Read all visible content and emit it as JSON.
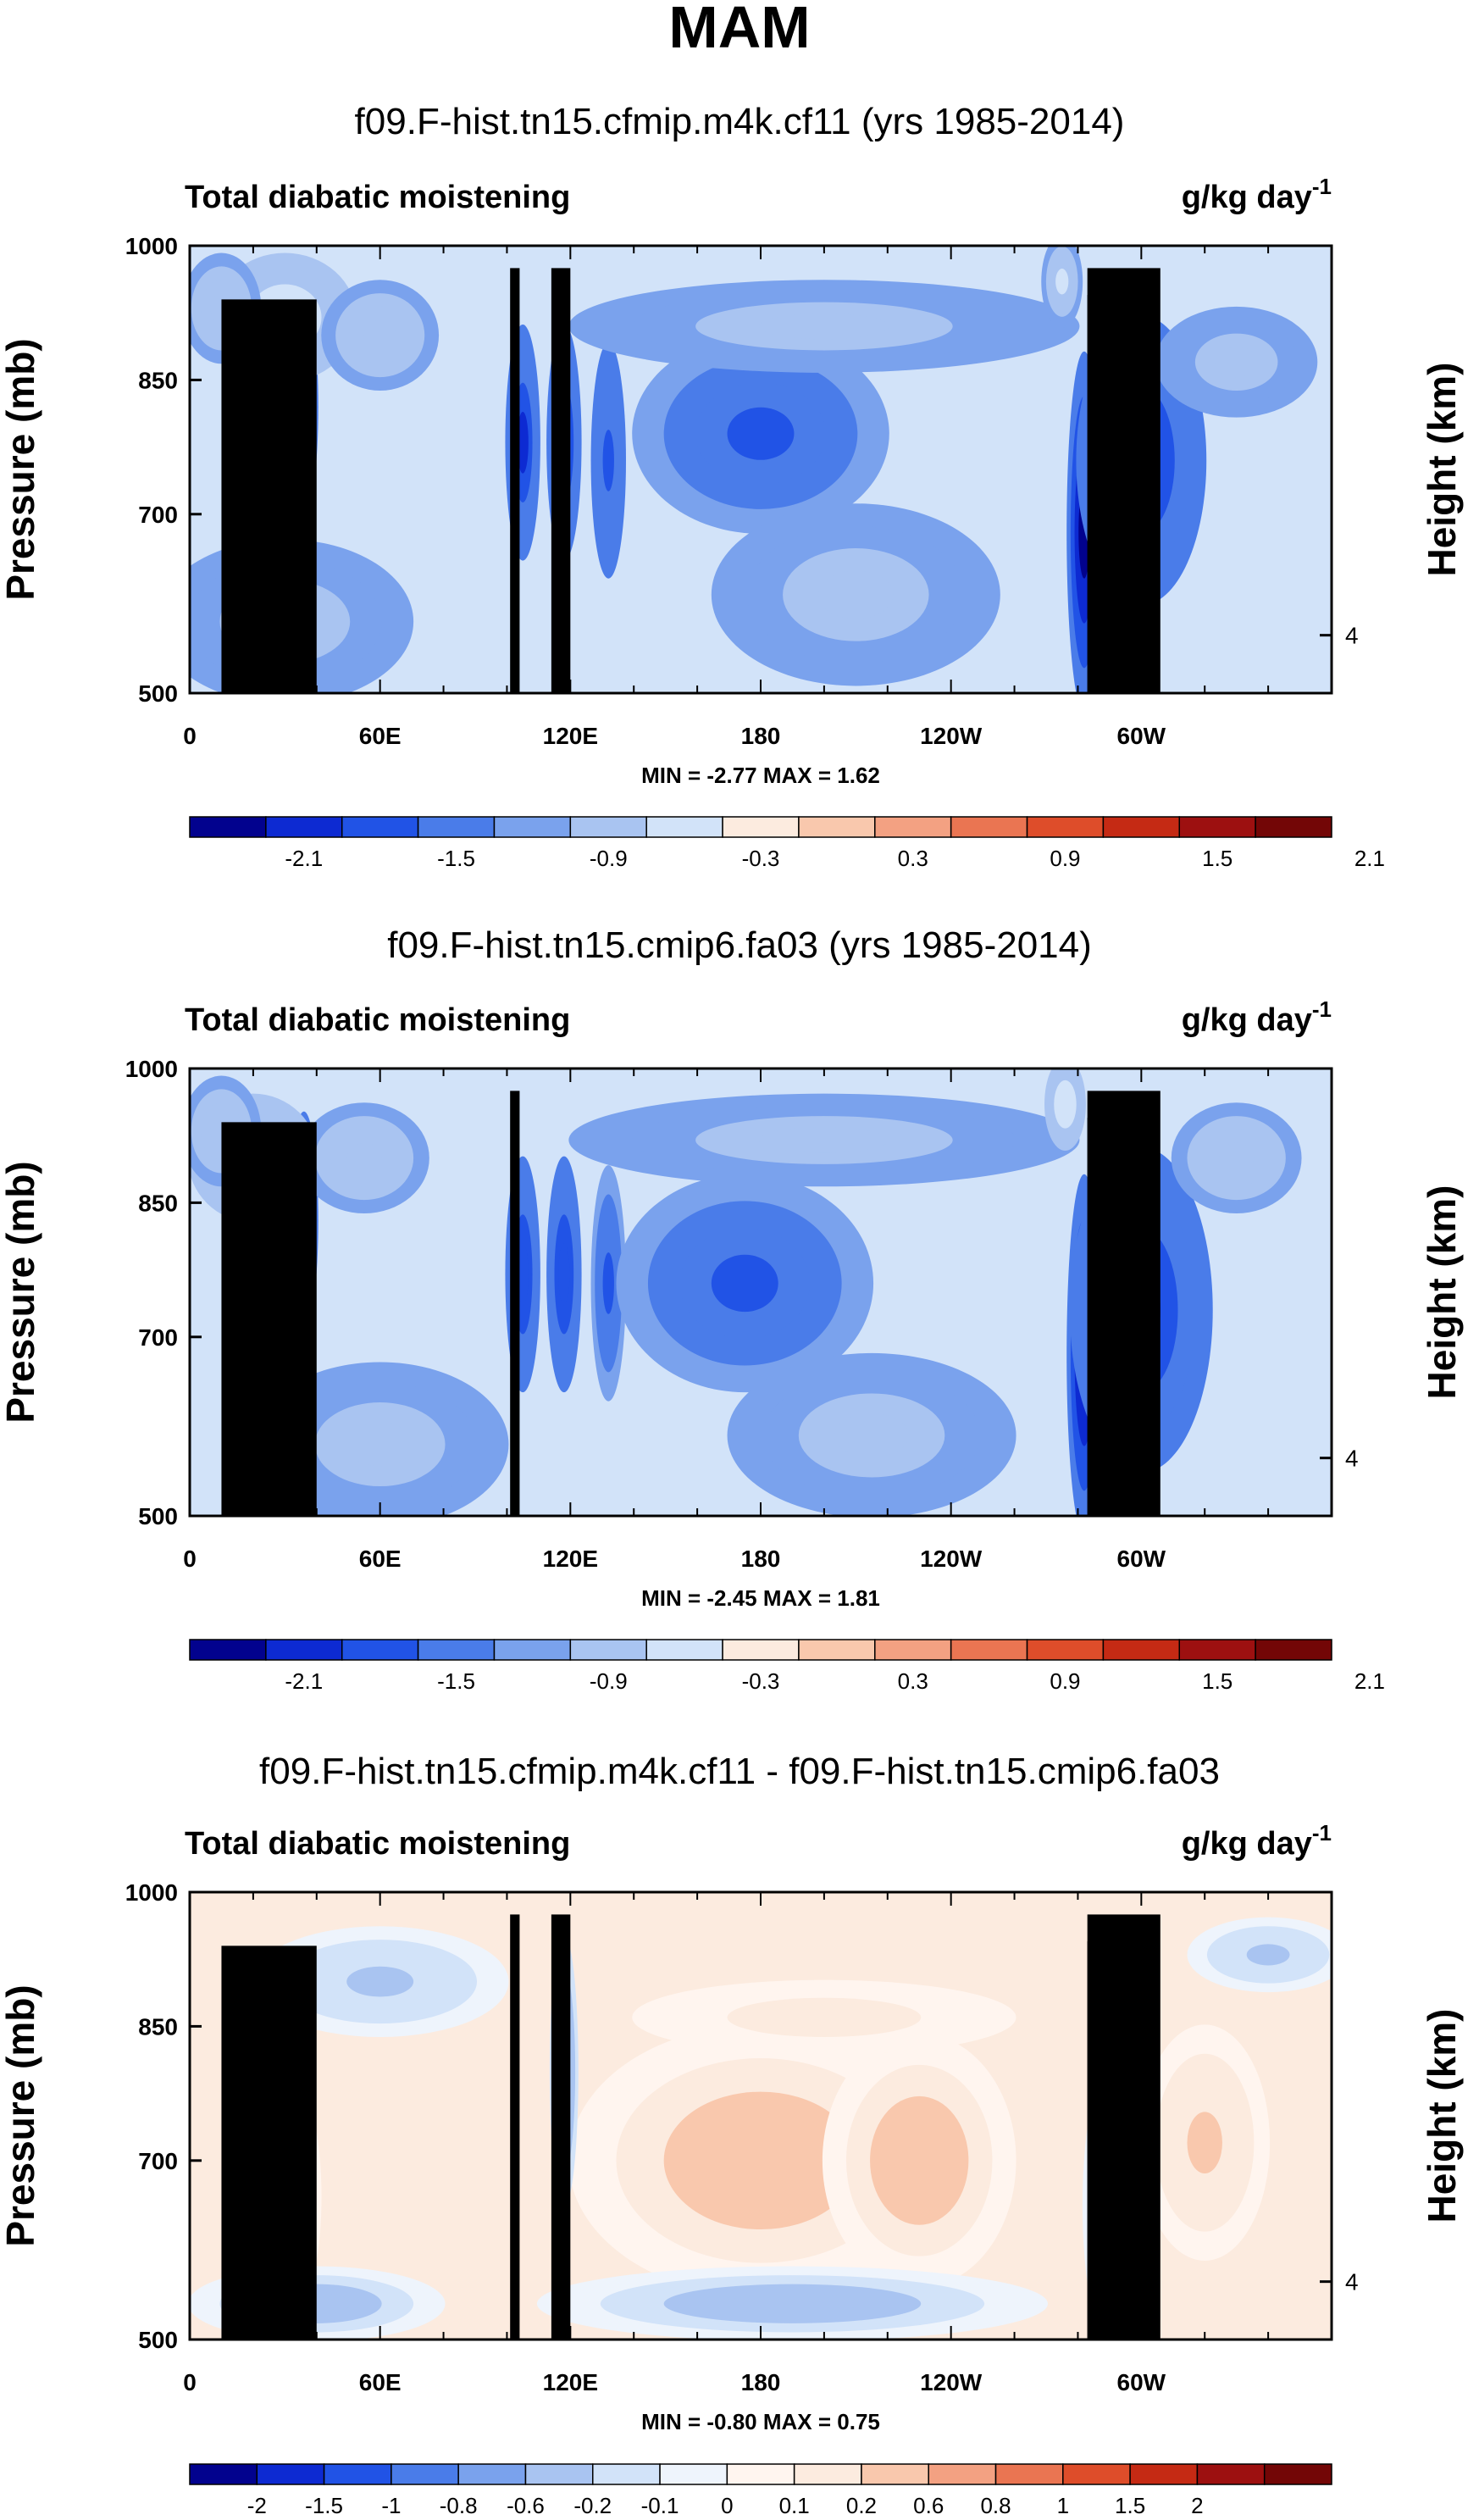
{
  "figure": {
    "title": "MAM"
  },
  "colors": {
    "land": "#000000",
    "palette_10": [
      "#02028e",
      "#0d2ad2",
      "#2153e6",
      "#4a7ce9",
      "#7aa2ed",
      "#a9c4f1",
      "#d2e3f9",
      "#fcebdf",
      "#f9c8ad",
      "#f3a182",
      "#ea7552",
      "#de4d2a",
      "#c52a14",
      "#9d1010",
      "#730606"
    ],
    "palette_diff": [
      "#02028e",
      "#0d2ad2",
      "#2153e6",
      "#4a7ce9",
      "#7aa2ed",
      "#a9c4f1",
      "#d2e3f9",
      "#eef4fc",
      "#fff5ef",
      "#fcebdf",
      "#f9c8ad",
      "#f3a182",
      "#ea7552",
      "#de4d2a",
      "#c52a14",
      "#9d1010",
      "#730606"
    ]
  },
  "chart_data": [
    {
      "type": "heatmap",
      "title": "f09.F-hist.tn15.cfmip.m4k.cf11 (yrs 1985-2014)",
      "left_label": "Total diabatic moistening",
      "right_label": "g/kg day",
      "right_label_exp": "-1",
      "ylabel": "Pressure (mb)",
      "y2label": "Height (km)",
      "yticks": [
        "500",
        "700",
        "850",
        "1000"
      ],
      "y2ticks": [
        "4"
      ],
      "xticks": [
        "0",
        "60E",
        "120E",
        "180",
        "120W",
        "60W"
      ],
      "xlim": [
        0,
        360
      ],
      "ylim": [
        1000,
        500
      ],
      "min_max": "MIN = -2.77  MAX = 1.62",
      "colorbar_labels": [
        "-2.1",
        "-1.5",
        "-0.9",
        "-0.3",
        "0.3",
        "0.9",
        "1.5",
        "2.1"
      ],
      "features": [
        {
          "lon": 30,
          "p": 650,
          "value": -1.9,
          "wlon": 8,
          "wp": 170
        },
        {
          "lon": 36,
          "p": 820,
          "value": -2.3,
          "wlon": 4,
          "wp": 120
        },
        {
          "lon": 30,
          "p": 920,
          "value": 1.3,
          "wlon": 22,
          "wp": 70
        },
        {
          "lon": 60,
          "p": 900,
          "value": 0.9,
          "wlon": 18,
          "wp": 60
        },
        {
          "lon": 30,
          "p": 580,
          "value": 0.4,
          "wlon": 40,
          "wp": 90
        },
        {
          "lon": 105,
          "p": 780,
          "value": -1.5,
          "wlon": 5,
          "wp": 130
        },
        {
          "lon": 118,
          "p": 780,
          "value": -1.6,
          "wlon": 5,
          "wp": 130
        },
        {
          "lon": 132,
          "p": 760,
          "value": -1.2,
          "wlon": 5,
          "wp": 130
        },
        {
          "lon": 180,
          "p": 790,
          "value": -0.9,
          "wlon": 40,
          "wp": 110
        },
        {
          "lon": 210,
          "p": 610,
          "value": 0.5,
          "wlon": 45,
          "wp": 100
        },
        {
          "lon": 200,
          "p": 910,
          "value": 0.6,
          "wlon": 80,
          "wp": 50
        },
        {
          "lon": 282,
          "p": 680,
          "value": -2.3,
          "wlon": 5,
          "wp": 200
        },
        {
          "lon": 300,
          "p": 760,
          "value": -1.6,
          "wlon": 20,
          "wp": 160
        },
        {
          "lon": 330,
          "p": 870,
          "value": 0.6,
          "wlon": 25,
          "wp": 60
        },
        {
          "lon": 275,
          "p": 960,
          "value": 1.1,
          "wlon": 6,
          "wp": 50
        },
        {
          "lon": 10,
          "p": 930,
          "value": 0.8,
          "wlon": 12,
          "wp": 60
        }
      ],
      "land": [
        {
          "lon0": 10,
          "lon1": 40,
          "ptop": 940
        },
        {
          "lon0": 22,
          "lon1": 37,
          "ptop": 910
        },
        {
          "lon0": 28,
          "lon1": 35,
          "ptop": 890
        },
        {
          "lon0": 101,
          "lon1": 104,
          "ptop": 975
        },
        {
          "lon0": 114,
          "lon1": 120,
          "ptop": 975
        },
        {
          "lon0": 283,
          "lon1": 306,
          "ptop": 975
        },
        {
          "lon0": 283,
          "lon1": 286,
          "ptop": 945
        }
      ]
    },
    {
      "type": "heatmap",
      "title": "f09.F-hist.tn15.cmip6.fa03 (yrs 1985-2014)",
      "left_label": "Total diabatic moistening",
      "right_label": "g/kg day",
      "right_label_exp": "-1",
      "ylabel": "Pressure (mb)",
      "y2label": "Height (km)",
      "yticks": [
        "500",
        "700",
        "850",
        "1000"
      ],
      "y2ticks": [
        "4"
      ],
      "xticks": [
        "0",
        "60E",
        "120E",
        "180",
        "120W",
        "60W"
      ],
      "xlim": [
        0,
        360
      ],
      "ylim": [
        1000,
        500
      ],
      "min_max": "MIN = -2.45  MAX = 1.81",
      "colorbar_labels": [
        "-2.1",
        "-1.5",
        "-0.9",
        "-0.3",
        "0.3",
        "0.9",
        "1.5",
        "2.1"
      ],
      "features": [
        {
          "lon": 28,
          "p": 650,
          "value": -1.7,
          "wlon": 9,
          "wp": 170
        },
        {
          "lon": 36,
          "p": 830,
          "value": -2.2,
          "wlon": 4,
          "wp": 120
        },
        {
          "lon": 20,
          "p": 900,
          "value": 1.4,
          "wlon": 20,
          "wp": 70
        },
        {
          "lon": 55,
          "p": 900,
          "value": 0.9,
          "wlon": 20,
          "wp": 60
        },
        {
          "lon": 60,
          "p": 580,
          "value": 0.4,
          "wlon": 40,
          "wp": 90
        },
        {
          "lon": 105,
          "p": 770,
          "value": -1.3,
          "wlon": 5,
          "wp": 130
        },
        {
          "lon": 118,
          "p": 770,
          "value": -1.3,
          "wlon": 5,
          "wp": 130
        },
        {
          "lon": 132,
          "p": 760,
          "value": -1.1,
          "wlon": 5,
          "wp": 130
        },
        {
          "lon": 175,
          "p": 760,
          "value": -1.1,
          "wlon": 40,
          "wp": 120
        },
        {
          "lon": 215,
          "p": 590,
          "value": 0.5,
          "wlon": 45,
          "wp": 90
        },
        {
          "lon": 200,
          "p": 920,
          "value": 0.4,
          "wlon": 80,
          "wp": 50
        },
        {
          "lon": 282,
          "p": 680,
          "value": -2.2,
          "wlon": 5,
          "wp": 200
        },
        {
          "lon": 300,
          "p": 730,
          "value": -1.7,
          "wlon": 22,
          "wp": 180
        },
        {
          "lon": 330,
          "p": 900,
          "value": 0.7,
          "wlon": 20,
          "wp": 60
        },
        {
          "lon": 276,
          "p": 960,
          "value": 1.4,
          "wlon": 6,
          "wp": 50
        },
        {
          "lon": 10,
          "p": 930,
          "value": 0.9,
          "wlon": 12,
          "wp": 60
        }
      ],
      "land": [
        {
          "lon0": 10,
          "lon1": 40,
          "ptop": 940
        },
        {
          "lon0": 22,
          "lon1": 37,
          "ptop": 910
        },
        {
          "lon0": 28,
          "lon1": 35,
          "ptop": 890
        },
        {
          "lon0": 101,
          "lon1": 104,
          "ptop": 975
        },
        {
          "lon0": 283,
          "lon1": 306,
          "ptop": 975
        },
        {
          "lon0": 283,
          "lon1": 286,
          "ptop": 945
        }
      ]
    },
    {
      "type": "heatmap",
      "title": "f09.F-hist.tn15.cfmip.m4k.cf11 - f09.F-hist.tn15.cmip6.fa03",
      "left_label": "Total diabatic moistening",
      "right_label": "g/kg day",
      "right_label_exp": "-1",
      "ylabel": "Pressure (mb)",
      "y2label": "Height (km)",
      "yticks": [
        "500",
        "700",
        "850",
        "1000"
      ],
      "y2ticks": [
        "4"
      ],
      "xticks": [
        "0",
        "60E",
        "120E",
        "180",
        "120W",
        "60W"
      ],
      "xlim": [
        0,
        360
      ],
      "ylim": [
        1000,
        500
      ],
      "min_max": "MIN = -0.80  MAX = 0.75",
      "colorbar_labels": [
        "-2",
        "-1.5",
        "-1",
        "-0.8",
        "-0.6",
        "-0.2",
        "-0.1",
        "0",
        "0.1",
        "0.2",
        "0.6",
        "0.8",
        "1",
        "1.5",
        "2"
      ],
      "features": [
        {
          "lon": 180,
          "p": 700,
          "value": 0.35,
          "wlon": 60,
          "wp": 150
        },
        {
          "lon": 230,
          "p": 700,
          "value": 0.3,
          "wlon": 30,
          "wp": 140
        },
        {
          "lon": 190,
          "p": 540,
          "value": -0.35,
          "wlon": 80,
          "wp": 40
        },
        {
          "lon": 40,
          "p": 540,
          "value": -0.3,
          "wlon": 40,
          "wp": 40
        },
        {
          "lon": 30,
          "p": 800,
          "value": -0.5,
          "wlon": 6,
          "wp": 130
        },
        {
          "lon": 35,
          "p": 660,
          "value": 0.3,
          "wlon": 6,
          "wp": 110
        },
        {
          "lon": 118,
          "p": 800,
          "value": -0.45,
          "wlon": 4,
          "wp": 150
        },
        {
          "lon": 60,
          "p": 900,
          "value": -0.2,
          "wlon": 40,
          "wp": 60
        },
        {
          "lon": 290,
          "p": 650,
          "value": -0.35,
          "wlon": 8,
          "wp": 150
        },
        {
          "lon": 320,
          "p": 720,
          "value": 0.25,
          "wlon": 20,
          "wp": 130
        },
        {
          "lon": 200,
          "p": 860,
          "value": 0.2,
          "wlon": 60,
          "wp": 40
        },
        {
          "lon": 340,
          "p": 930,
          "value": -0.2,
          "wlon": 25,
          "wp": 40
        }
      ],
      "land": [
        {
          "lon0": 10,
          "lon1": 40,
          "ptop": 940
        },
        {
          "lon0": 22,
          "lon1": 37,
          "ptop": 910
        },
        {
          "lon0": 28,
          "lon1": 35,
          "ptop": 890
        },
        {
          "lon0": 101,
          "lon1": 104,
          "ptop": 975
        },
        {
          "lon0": 114,
          "lon1": 120,
          "ptop": 975
        },
        {
          "lon0": 283,
          "lon1": 306,
          "ptop": 975
        },
        {
          "lon0": 283,
          "lon1": 286,
          "ptop": 945
        }
      ]
    }
  ]
}
